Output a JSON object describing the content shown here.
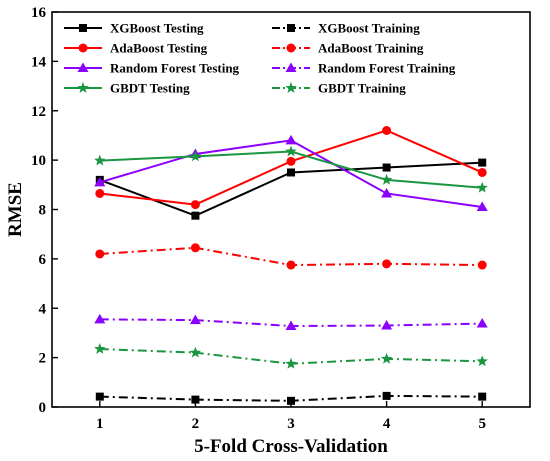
{
  "chart_data": {
    "type": "line",
    "title": "",
    "xlabel": "5-Fold Cross-Validation",
    "ylabel": "RMSE",
    "x": [
      1,
      2,
      3,
      4,
      5
    ],
    "xlim": [
      0.5,
      5.5
    ],
    "ylim": [
      0,
      16
    ],
    "xticks": [
      "1",
      "2",
      "3",
      "4",
      "5"
    ],
    "yticks": [
      "0",
      "2",
      "4",
      "6",
      "8",
      "10",
      "12",
      "14",
      "16"
    ],
    "grid": false,
    "legend_position": "top",
    "series": [
      {
        "name": "XGBoost Testing",
        "color": "#000000",
        "marker": "square",
        "dash": "solid",
        "values": [
          9.2,
          7.75,
          9.5,
          9.7,
          9.9
        ]
      },
      {
        "name": "XGBoost Training",
        "color": "#000000",
        "marker": "square",
        "dash": "dashdot",
        "values": [
          0.42,
          0.3,
          0.25,
          0.45,
          0.42
        ]
      },
      {
        "name": "AdaBoost Testing",
        "color": "#ff0000",
        "marker": "circle",
        "dash": "solid",
        "values": [
          8.65,
          8.2,
          9.95,
          11.2,
          9.5
        ]
      },
      {
        "name": "AdaBoost Training",
        "color": "#ff0000",
        "marker": "circle",
        "dash": "dashdot",
        "values": [
          6.2,
          6.45,
          5.75,
          5.8,
          5.75
        ]
      },
      {
        "name": "Random Forest Testing",
        "color": "#8b00ff",
        "marker": "triangle",
        "dash": "solid",
        "values": [
          9.1,
          10.25,
          10.8,
          8.65,
          8.1
        ]
      },
      {
        "name": "Random Forest Training",
        "color": "#8b00ff",
        "marker": "triangle",
        "dash": "dashdot",
        "values": [
          3.55,
          3.52,
          3.28,
          3.3,
          3.38
        ]
      },
      {
        "name": "GBDT Testing",
        "color": "#1a9641",
        "marker": "star",
        "dash": "solid",
        "values": [
          9.98,
          10.15,
          10.35,
          9.2,
          8.88
        ]
      },
      {
        "name": "GBDT Training",
        "color": "#1a9641",
        "marker": "star",
        "dash": "dashdot",
        "values": [
          2.35,
          2.2,
          1.75,
          1.95,
          1.85
        ]
      }
    ]
  }
}
